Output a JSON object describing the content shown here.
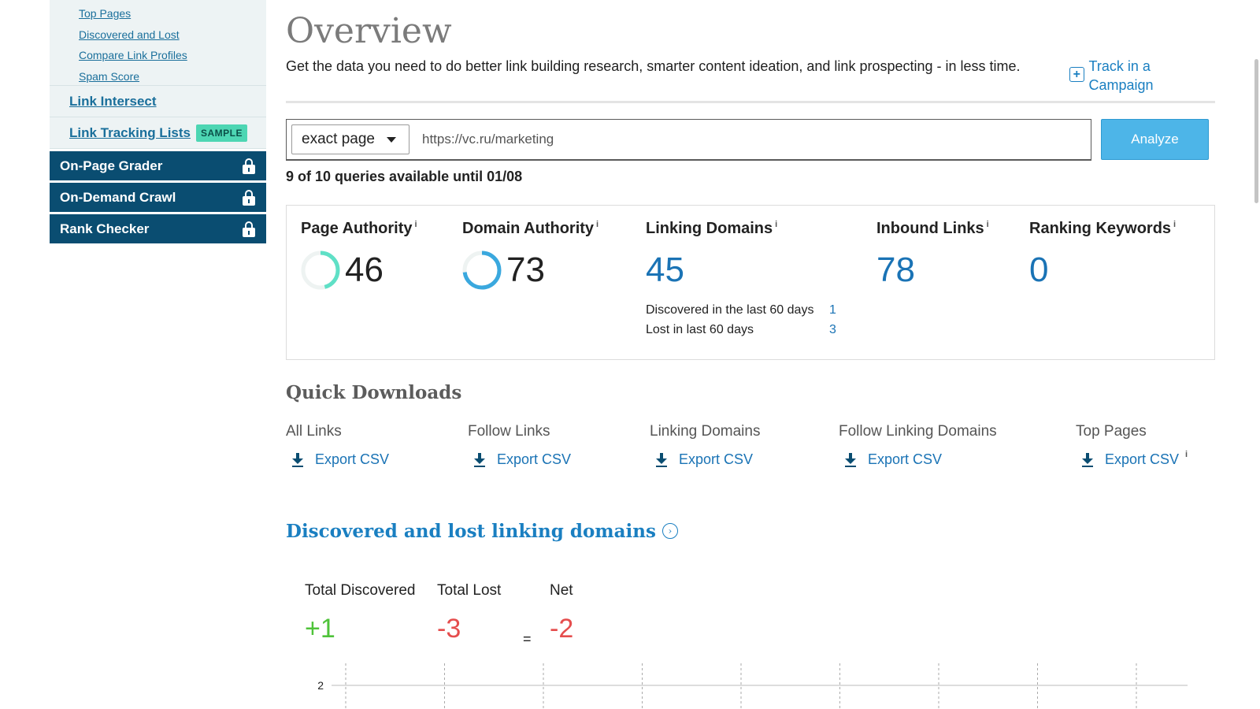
{
  "sidebar": {
    "sub_links": [
      "Top Pages",
      "Discovered and Lost",
      "Compare Link Profiles",
      "Spam Score"
    ],
    "link_intersect": "Link Intersect",
    "link_tracking": "Link Tracking Lists",
    "sample_badge": "SAMPLE",
    "locked_items": [
      "On-Page Grader",
      "On-Demand Crawl",
      "Rank Checker"
    ]
  },
  "header": {
    "title": "Overview",
    "intro": "Get the data you need to do better link building research, smarter content ideation, and link prospecting - in less time.",
    "track_link": "Track in a Campaign"
  },
  "search": {
    "scope": "exact page",
    "url": "https://vc.ru/marketing",
    "analyze_label": "Analyze",
    "queries_text": "9 of 10 queries available until 01/08"
  },
  "metrics": {
    "info_mark": "i",
    "page_authority": {
      "label": "Page Authority",
      "value": "46",
      "fraction": 0.46
    },
    "domain_authority": {
      "label": "Domain Authority",
      "value": "73",
      "fraction": 0.73
    },
    "linking_domains": {
      "label": "Linking Domains",
      "value": "45",
      "discovered_label": "Discovered in the last 60 days",
      "discovered_value": "1",
      "lost_label": "Lost in last 60 days",
      "lost_value": "3"
    },
    "inbound_links": {
      "label": "Inbound Links",
      "value": "78"
    },
    "ranking_keywords": {
      "label": "Ranking Keywords",
      "value": "0"
    }
  },
  "quick_downloads": {
    "title": "Quick Downloads",
    "export_label": "Export CSV",
    "items": [
      "All Links",
      "Follow Links",
      "Linking Domains",
      "Follow Linking Domains",
      "Top Pages"
    ]
  },
  "discovered_lost": {
    "title": "Discovered and lost linking domains",
    "total_discovered_label": "Total Discovered",
    "total_discovered_value": "+1",
    "total_lost_label": "Total Lost",
    "total_lost_value": "-3",
    "equals": "=",
    "net_label": "Net",
    "net_value": "-2",
    "chart_y_tick": "2"
  },
  "colors": {
    "navy": "#0a4d71",
    "link_blue": "#1a73b5",
    "analyze_blue": "#4db5e8",
    "sample_green": "#4dd6b3",
    "pa_ring": "#5fe0c6",
    "da_ring": "#3aa8de",
    "positive": "#4fc33a",
    "negative": "#e54d4d"
  }
}
